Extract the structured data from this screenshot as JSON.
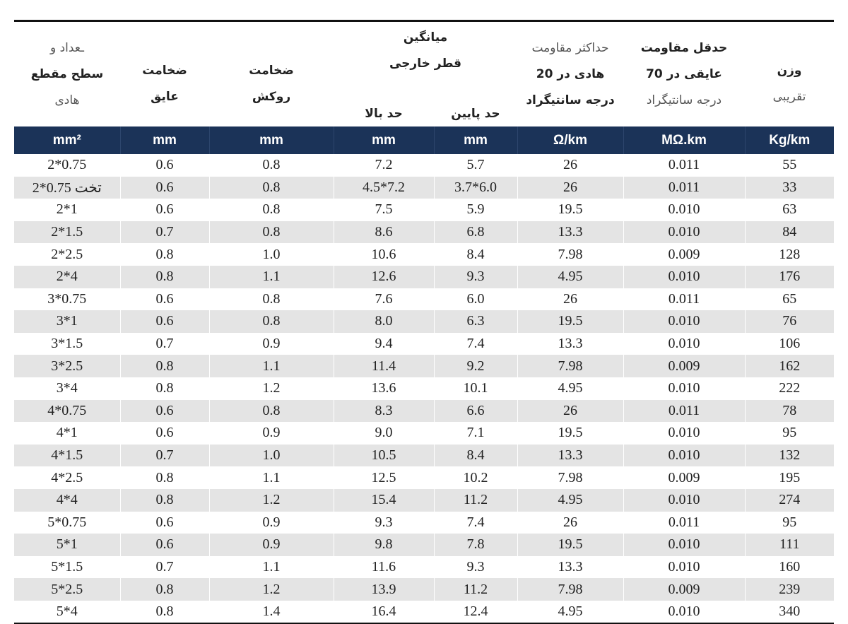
{
  "headers": {
    "conductor": [
      "ـعداد و",
      "سطح مقطع",
      "هادی"
    ],
    "insulation": [
      "ضخامت",
      "عایق"
    ],
    "sheath": [
      "ضخامت",
      "روکش"
    ],
    "avg_diameter": [
      "میانگین",
      "قطر خارجی"
    ],
    "upper_limit": "حد بالا",
    "lower_limit": "حد پایین",
    "max_resistance": [
      "حداکثر مقاومت",
      "هادی در 20",
      "درجه سانتیگراد"
    ],
    "min_insulation_resistance": [
      "حدقل مقاومت",
      "عایقی در 70",
      "درجه سانتیگراد"
    ],
    "weight": [
      "وزن",
      "تقریبی"
    ]
  },
  "units": [
    "mm²",
    "mm",
    "mm",
    "mm",
    "mm",
    "Ω/km",
    "MΩ.km",
    "Kg/km"
  ],
  "rows": [
    [
      "2*0.75",
      "0.6",
      "0.8",
      "7.2",
      "5.7",
      "26",
      "0.011",
      "55"
    ],
    [
      "تخت 0.75*2",
      "0.6",
      "0.8",
      "4.5*7.2",
      "3.7*6.0",
      "26",
      "0.011",
      "33"
    ],
    [
      "2*1",
      "0.6",
      "0.8",
      "7.5",
      "5.9",
      "19.5",
      "0.010",
      "63"
    ],
    [
      "2*1.5",
      "0.7",
      "0.8",
      "8.6",
      "6.8",
      "13.3",
      "0.010",
      "84"
    ],
    [
      "2*2.5",
      "0.8",
      "1.0",
      "10.6",
      "8.4",
      "7.98",
      "0.009",
      "128"
    ],
    [
      "2*4",
      "0.8",
      "1.1",
      "12.6",
      "9.3",
      "4.95",
      "0.010",
      "176"
    ],
    [
      "3*0.75",
      "0.6",
      "0.8",
      "7.6",
      "6.0",
      "26",
      "0.011",
      "65"
    ],
    [
      "3*1",
      "0.6",
      "0.8",
      "8.0",
      "6.3",
      "19.5",
      "0.010",
      "76"
    ],
    [
      "3*1.5",
      "0.7",
      "0.9",
      "9.4",
      "7.4",
      "13.3",
      "0.010",
      "106"
    ],
    [
      "3*2.5",
      "0.8",
      "1.1",
      "11.4",
      "9.2",
      "7.98",
      "0.009",
      "162"
    ],
    [
      "3*4",
      "0.8",
      "1.2",
      "13.6",
      "10.1",
      "4.95",
      "0.010",
      "222"
    ],
    [
      "4*0.75",
      "0.6",
      "0.8",
      "8.3",
      "6.6",
      "26",
      "0.011",
      "78"
    ],
    [
      "4*1",
      "0.6",
      "0.9",
      "9.0",
      "7.1",
      "19.5",
      "0.010",
      "95"
    ],
    [
      "4*1.5",
      "0.7",
      "1.0",
      "10.5",
      "8.4",
      "13.3",
      "0.010",
      "132"
    ],
    [
      "4*2.5",
      "0.8",
      "1.1",
      "12.5",
      "10.2",
      "7.98",
      "0.009",
      "195"
    ],
    [
      "4*4",
      "0.8",
      "1.2",
      "15.4",
      "11.2",
      "4.95",
      "0.010",
      "274"
    ],
    [
      "5*0.75",
      "0.6",
      "0.9",
      "9.3",
      "7.4",
      "26",
      "0.011",
      "95"
    ],
    [
      "5*1",
      "0.6",
      "0.9",
      "9.8",
      "7.8",
      "19.5",
      "0.010",
      "111"
    ],
    [
      "5*1.5",
      "0.7",
      "1.1",
      "11.6",
      "9.3",
      "13.3",
      "0.010",
      "160"
    ],
    [
      "5*2.5",
      "0.8",
      "1.2",
      "13.9",
      "11.2",
      "7.98",
      "0.009",
      "239"
    ],
    [
      "5*4",
      "0.8",
      "1.4",
      "16.4",
      "12.4",
      "4.95",
      "0.010",
      "340"
    ]
  ]
}
